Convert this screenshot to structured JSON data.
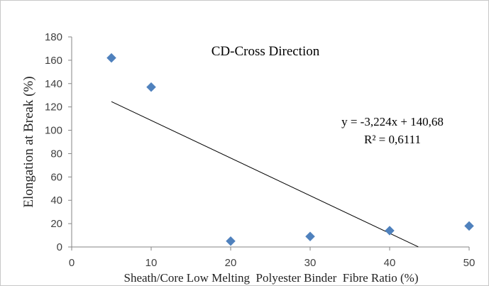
{
  "chart_data": {
    "type": "scatter",
    "title": "CD-Cross Direction",
    "xlabel": "Sheath/Core Low Melting  Polyester Binder  Fibre Ratio (%)",
    "ylabel": "Elongation at Break (%)",
    "xlim": [
      0,
      50
    ],
    "ylim": [
      0,
      180
    ],
    "x_ticks": [
      "0",
      "10",
      "20",
      "30",
      "40",
      "50"
    ],
    "y_ticks": [
      "0",
      "20",
      "40",
      "60",
      "80",
      "100",
      "120",
      "140",
      "160",
      "180"
    ],
    "grid": false,
    "series": [
      {
        "x": [
          5,
          10,
          20,
          30,
          40,
          50
        ],
        "y": [
          162,
          137,
          5,
          9,
          14,
          18
        ],
        "color": "#4f81bd",
        "marker": "diamond"
      }
    ],
    "trendline": {
      "type": "linear",
      "slope": -3.224,
      "intercept": 140.68,
      "x_range": [
        5,
        43.6
      ],
      "color": "#000000",
      "equation": "y = -3,224x  + 140,68",
      "r_squared": "R² = 0,6111"
    }
  }
}
